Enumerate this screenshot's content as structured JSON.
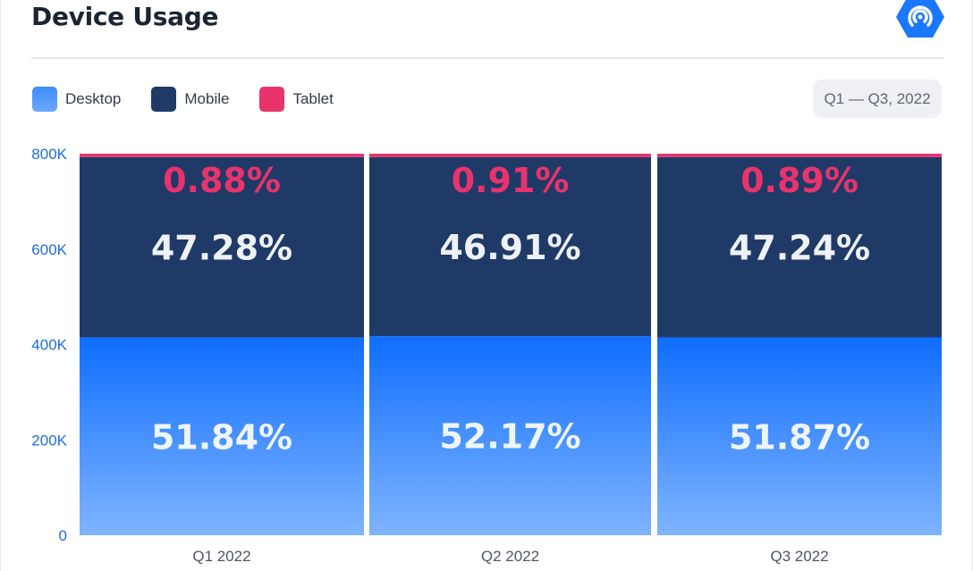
{
  "header": {
    "title": "Device Usage",
    "period": "Q1 — Q3, 2022"
  },
  "legend": [
    {
      "label": "Desktop",
      "color": "#1a78ff"
    },
    {
      "label": "Mobile",
      "color": "#1f3a66"
    },
    {
      "label": "Tablet",
      "color": "#e8336d"
    }
  ],
  "logo_icon": "datareportal-logo-icon",
  "chart_data": {
    "type": "bar",
    "stacked": true,
    "categories": [
      "Q1 2022",
      "Q2 2022",
      "Q3 2022"
    ],
    "y_ticks": [
      "0",
      "200K",
      "400K",
      "600K",
      "800K"
    ],
    "ylim": [
      0,
      800000
    ],
    "series": [
      {
        "name": "Desktop",
        "color": "#1a78ff",
        "values": [
          51.84,
          52.17,
          51.87
        ],
        "labels": [
          "51.84%",
          "52.17%",
          "51.87%"
        ]
      },
      {
        "name": "Mobile",
        "color": "#1f3a66",
        "values": [
          47.28,
          46.91,
          47.24
        ],
        "labels": [
          "47.28%",
          "46.91%",
          "47.24%"
        ]
      },
      {
        "name": "Tablet",
        "color": "#e8336d",
        "values": [
          0.88,
          0.91,
          0.89
        ],
        "labels": [
          "0.88%",
          "0.91%",
          "0.89%"
        ]
      }
    ],
    "grid": false,
    "legend_position": "top-left"
  }
}
